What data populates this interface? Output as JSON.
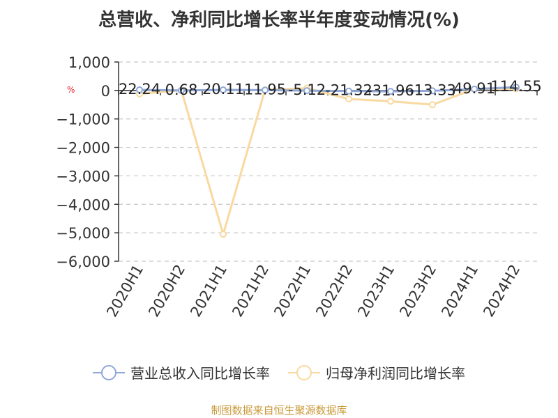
{
  "title": "总营收、净利同比增长率半年度变动情况(%)",
  "unit": "%",
  "source": "制图数据来自恒生聚源数据库",
  "chart_data": {
    "type": "line",
    "title": "总营收、净利同比增长率半年度变动情况(%)",
    "categories": [
      "2020H1",
      "2020H2",
      "2021H1",
      "2021H2",
      "2022H1",
      "2022H2",
      "2023H1",
      "2023H2",
      "2024H1",
      "2024H2"
    ],
    "ylim": [
      -6000,
      1000
    ],
    "yticks": [
      "1,000",
      "0",
      "−1,000",
      "−2,000",
      "−3,000",
      "−4,000",
      "−5,000",
      "−6,000"
    ],
    "grid": true,
    "legend_position": "bottom",
    "series": [
      {
        "name": "营业总收入同比增长率",
        "color": "#8fa8d8",
        "values": [
          22.24,
          0.68,
          20.11,
          11.95,
          -5.12,
          -21.32,
          -31.96,
          -13.33,
          49.91,
          114.55
        ],
        "labels": [
          "22.24",
          "0.68",
          "20.11",
          "11.95",
          "-5.12",
          "-21.32",
          "-31.96",
          "-13.33",
          "49.91",
          "114.55"
        ]
      },
      {
        "name": "归母净利润同比增长率",
        "color": "#f9d9a0",
        "values": [
          -120,
          10,
          -5050,
          20,
          80,
          -300,
          -380,
          -500,
          50,
          60
        ]
      }
    ]
  }
}
